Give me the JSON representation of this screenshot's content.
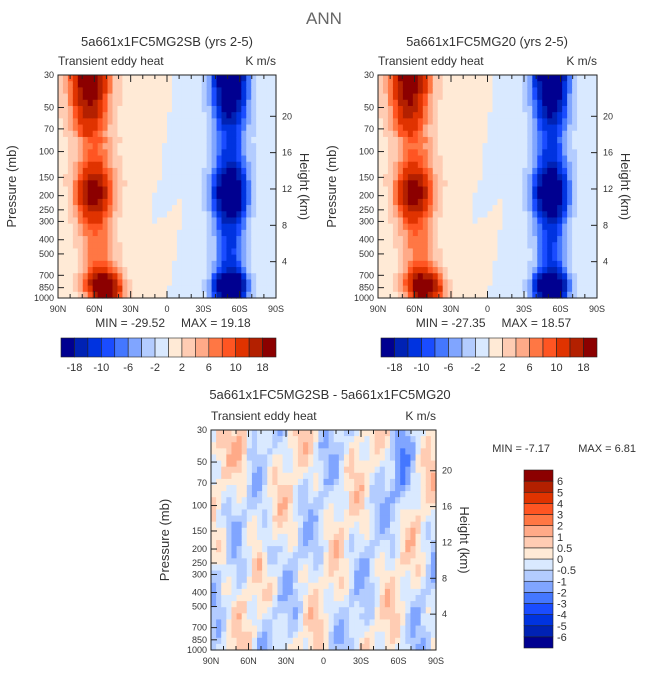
{
  "figure_title": "ANN",
  "chart_data": [
    {
      "type": "heatmap",
      "title": "5a661x1FC5MG2SB (yrs 2-5)",
      "subtitle_left": "Transient eddy heat",
      "subtitle_right": "K m/s",
      "ylabel": "Pressure (mb)",
      "ylabel_right": "Height (km)",
      "x_ticks": [
        "90N",
        "60N",
        "30N",
        "0",
        "30S",
        "60S",
        "90S"
      ],
      "y_ticks": [
        "30",
        "50",
        "70",
        "100",
        "150",
        "200",
        "250",
        "300",
        "400",
        "500",
        "700",
        "850",
        "1000"
      ],
      "y_ticks_right": [
        "4",
        "8",
        "12",
        "16",
        "20"
      ],
      "min_label": "MIN = -29.52",
      "max_label": "MAX = 19.18",
      "min": -29.52,
      "max": 19.18,
      "colorbar_labels": [
        "-18",
        "-10",
        "-6",
        "-2",
        "2",
        "6",
        "10",
        "18"
      ],
      "levels": [
        -18,
        -14,
        -10,
        -8,
        -6,
        -4,
        -2,
        0,
        2,
        4,
        6,
        8,
        10,
        14,
        18
      ]
    },
    {
      "type": "heatmap",
      "title": "5a661x1FC5MG20 (yrs 2-5)",
      "subtitle_left": "Transient eddy heat",
      "subtitle_right": "K m/s",
      "ylabel": "Pressure (mb)",
      "ylabel_right": "Height (km)",
      "x_ticks": [
        "90N",
        "60N",
        "30N",
        "0",
        "30S",
        "60S",
        "90S"
      ],
      "y_ticks": [
        "30",
        "50",
        "70",
        "100",
        "150",
        "200",
        "250",
        "300",
        "400",
        "500",
        "700",
        "850",
        "1000"
      ],
      "y_ticks_right": [
        "4",
        "8",
        "12",
        "16",
        "20"
      ],
      "min_label": "MIN = -27.35",
      "max_label": "MAX = 18.57",
      "min": -27.35,
      "max": 18.57,
      "colorbar_labels": [
        "-18",
        "-10",
        "-6",
        "-2",
        "2",
        "6",
        "10",
        "18"
      ],
      "levels": [
        -18,
        -14,
        -10,
        -8,
        -6,
        -4,
        -2,
        0,
        2,
        4,
        6,
        8,
        10,
        14,
        18
      ]
    },
    {
      "type": "heatmap",
      "title": "5a661x1FC5MG2SB - 5a661x1FC5MG20",
      "subtitle_left": "Transient eddy heat",
      "subtitle_right": "K m/s",
      "ylabel": "Pressure (mb)",
      "ylabel_right": "Height (km)",
      "x_ticks": [
        "90N",
        "60N",
        "30N",
        "0",
        "30S",
        "60S",
        "90S"
      ],
      "y_ticks": [
        "30",
        "50",
        "70",
        "100",
        "150",
        "200",
        "250",
        "300",
        "400",
        "500",
        "700",
        "850",
        "1000"
      ],
      "y_ticks_right": [
        "4",
        "8",
        "12",
        "16",
        "20"
      ],
      "min_label": "MIN =   -7.17",
      "max_label": "MAX =    6.81",
      "min": -7.17,
      "max": 6.81,
      "colorbar_labels": [
        "-6",
        "-5",
        "-4",
        "-3",
        "-2",
        "-1",
        "-0.5",
        "0",
        "0.5",
        "1",
        "2",
        "3",
        "4",
        "5",
        "6"
      ],
      "levels": [
        -6,
        -5,
        -4,
        -3,
        -2,
        -1,
        -0.5,
        0,
        0.5,
        1,
        2,
        3,
        4,
        5,
        6
      ]
    }
  ],
  "colors": [
    "#000090",
    "#0022b4",
    "#0033e0",
    "#1a4cff",
    "#4477ff",
    "#80a5ff",
    "#b3ccff",
    "#d9e9ff",
    "#ffead6",
    "#ffccb3",
    "#ffaa88",
    "#ff7744",
    "#ff5522",
    "#e03300",
    "#b32000",
    "#8c0000"
  ]
}
